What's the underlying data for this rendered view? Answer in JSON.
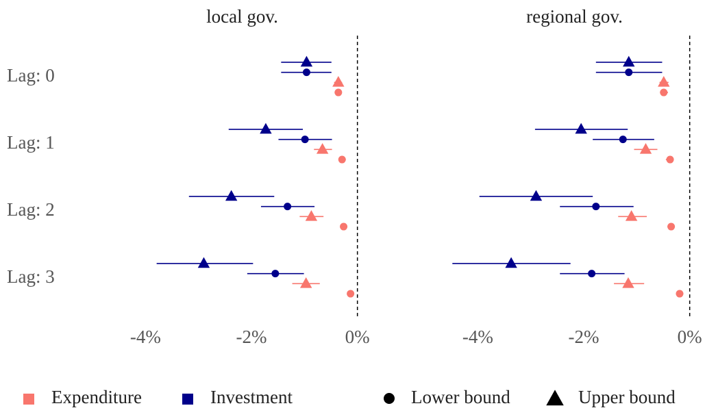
{
  "chart_data": {
    "type": "dotplot",
    "categories": [
      "Lag: 0",
      "Lag: 1",
      "Lag: 2",
      "Lag: 3"
    ],
    "xlim": [
      -4.6,
      0.25
    ],
    "xticks": [
      {
        "value": -4,
        "label": "-4%"
      },
      {
        "value": -2,
        "label": "-2%"
      },
      {
        "value": 0,
        "label": "0%"
      }
    ],
    "reference_line": 0,
    "legend": {
      "colors": [
        {
          "name": "Expenditure",
          "color": "#f8766d"
        },
        {
          "name": "Investment",
          "color": "#00008b"
        }
      ],
      "shapes": [
        {
          "name": "Lower bound",
          "shape": "circle"
        },
        {
          "name": "Upper bound",
          "shape": "triangle"
        }
      ]
    },
    "panels": [
      {
        "title": "local gov.",
        "series": [
          {
            "color": "#00008b",
            "shape": "triangle",
            "values": [
              -0.96,
              -1.73,
              -2.38,
              -2.9
            ],
            "ci_low": [
              -1.44,
              -2.43,
              -3.18,
              -3.79
            ],
            "ci_high": [
              -0.49,
              -1.03,
              -1.57,
              -1.97
            ]
          },
          {
            "color": "#00008b",
            "shape": "circle",
            "values": [
              -0.96,
              -0.99,
              -1.32,
              -1.55
            ],
            "ci_low": [
              -1.44,
              -1.49,
              -1.82,
              -2.08
            ],
            "ci_high": [
              -0.49,
              -0.48,
              -0.81,
              -1.01
            ]
          },
          {
            "color": "#f8766d",
            "shape": "triangle",
            "values": [
              -0.36,
              -0.66,
              -0.87,
              -0.97
            ],
            "ci_low": [
              -0.44,
              -0.82,
              -1.09,
              -1.23
            ],
            "ci_high": [
              -0.29,
              -0.48,
              -0.64,
              -0.71
            ]
          },
          {
            "color": "#f8766d",
            "shape": "circle",
            "values": [
              -0.36,
              -0.29,
              -0.26,
              -0.13
            ],
            "ci_low": [
              -0.43,
              -0.35,
              -0.32,
              -0.19
            ],
            "ci_high": [
              -0.3,
              -0.22,
              -0.2,
              -0.07
            ]
          }
        ]
      },
      {
        "title": "regional gov.",
        "series": [
          {
            "color": "#00008b",
            "shape": "triangle",
            "values": [
              -1.15,
              -2.05,
              -2.9,
              -3.37
            ],
            "ci_low": [
              -1.77,
              -2.92,
              -3.97,
              -4.48
            ],
            "ci_high": [
              -0.52,
              -1.17,
              -1.83,
              -2.25
            ]
          },
          {
            "color": "#00008b",
            "shape": "circle",
            "values": [
              -1.15,
              -1.26,
              -1.77,
              -1.85
            ],
            "ci_low": [
              -1.77,
              -1.83,
              -2.45,
              -2.45
            ],
            "ci_high": [
              -0.52,
              -0.67,
              -1.06,
              -1.23
            ]
          },
          {
            "color": "#f8766d",
            "shape": "triangle",
            "values": [
              -0.49,
              -0.83,
              -1.1,
              -1.16
            ],
            "ci_low": [
              -0.57,
              -1.05,
              -1.35,
              -1.43
            ],
            "ci_high": [
              -0.4,
              -0.61,
              -0.81,
              -0.86
            ]
          },
          {
            "color": "#f8766d",
            "shape": "circle",
            "values": [
              -0.49,
              -0.37,
              -0.35,
              -0.19
            ],
            "ci_low": [
              -0.56,
              -0.45,
              -0.42,
              -0.26
            ],
            "ci_high": [
              -0.41,
              -0.3,
              -0.28,
              -0.12
            ]
          }
        ]
      }
    ]
  }
}
